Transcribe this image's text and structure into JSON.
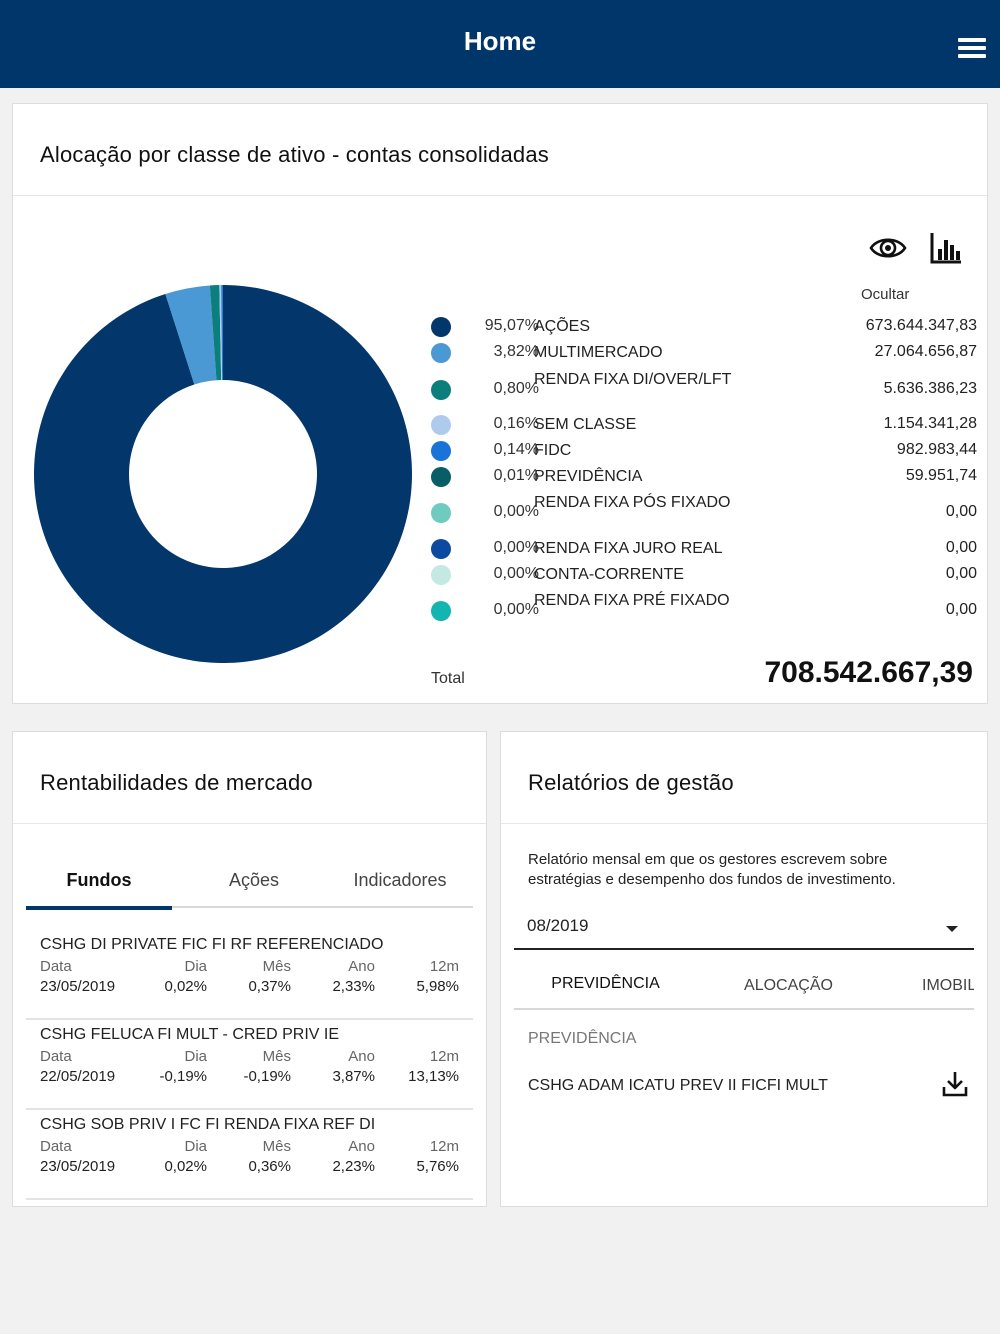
{
  "header": {
    "title": "Home",
    "menu_icon": "hamburger-menu-icon"
  },
  "allocation": {
    "title": "Alocação por classe de ativo - contas consolidadas",
    "eye_icon": "eye-icon",
    "chart_icon": "bar-chart-icon",
    "hide_label": "Ocultar",
    "items": [
      {
        "pct": "95,07%",
        "name": "AÇÕES",
        "value": "673.644.347,83",
        "color": "#03366b"
      },
      {
        "pct": "3,82%",
        "name": "MULTIMERCADO",
        "value": "27.064.656,87",
        "color": "#4a98d4"
      },
      {
        "pct": "0,80%",
        "name": "RENDA FIXA DI/OVER/LFT",
        "value": "5.636.386,23",
        "color": "#0a7f7c"
      },
      {
        "pct": "0,16%",
        "name": "SEM CLASSE",
        "value": "1.154.341,28",
        "color": "#aecbee"
      },
      {
        "pct": "0,14%",
        "name": "FIDC",
        "value": "982.983,44",
        "color": "#1a73d8"
      },
      {
        "pct": "0,01%",
        "name": "PREVIDÊNCIA",
        "value": "59.951,74",
        "color": "#075e66"
      },
      {
        "pct": "0,00%",
        "name": "RENDA FIXA PÓS FIXADO",
        "value": "0,00",
        "color": "#6fcac0"
      },
      {
        "pct": "0,00%",
        "name": "RENDA FIXA JURO REAL",
        "value": "0,00",
        "color": "#0b4aa0"
      },
      {
        "pct": "0,00%",
        "name": "CONTA-CORRENTE",
        "value": "0,00",
        "color": "#c4e8e4"
      },
      {
        "pct": "0,00%",
        "name": "RENDA FIXA PRÉ FIXADO",
        "value": "0,00",
        "color": "#12b5b0"
      }
    ],
    "total_label": "Total",
    "total_value": "708.542.667,39"
  },
  "chart_data": {
    "type": "pie",
    "donut": true,
    "categories": [
      "AÇÕES",
      "MULTIMERCADO",
      "RENDA FIXA DI/OVER/LFT",
      "SEM CLASSE",
      "FIDC",
      "PREVIDÊNCIA",
      "RENDA FIXA PÓS FIXADO",
      "RENDA FIXA JURO REAL",
      "CONTA-CORRENTE",
      "RENDA FIXA PRÉ FIXADO"
    ],
    "values": [
      95.07,
      3.82,
      0.8,
      0.16,
      0.14,
      0.01,
      0.0,
      0.0,
      0.0,
      0.0
    ],
    "colors": [
      "#03366b",
      "#4a98d4",
      "#0a7f7c",
      "#aecbee",
      "#1a73d8",
      "#075e66",
      "#6fcac0",
      "#0b4aa0",
      "#c4e8e4",
      "#12b5b0"
    ]
  },
  "market": {
    "title": "Rentabilidades de mercado",
    "tabs": [
      "Fundos",
      "Ações",
      "Indicadores"
    ],
    "col_labels": {
      "data": "Data",
      "dia": "Dia",
      "mes": "Mês",
      "ano": "Ano",
      "m12": "12m"
    },
    "funds": [
      {
        "name": "CSHG DI PRIVATE FIC FI RF REFERENCIADO",
        "data": "23/05/2019",
        "dia": "0,02%",
        "mes": "0,37%",
        "ano": "2,33%",
        "m12": "5,98%"
      },
      {
        "name": "CSHG FELUCA FI MULT - CRED PRIV IE",
        "data": "22/05/2019",
        "dia": "-0,19%",
        "mes": "-0,19%",
        "ano": "3,87%",
        "m12": "13,13%"
      },
      {
        "name": "CSHG SOB PRIV I FC FI RENDA FIXA REF DI",
        "data": "23/05/2019",
        "dia": "0,02%",
        "mes": "0,36%",
        "ano": "2,23%",
        "m12": "5,76%"
      }
    ]
  },
  "reports": {
    "title": "Relatórios de gestão",
    "description": "Relatório mensal em que os gestores escrevem sobre estratégias e desempenho dos fundos de investimento.",
    "selected_period": "08/2019",
    "tabs": [
      "PREVIDÊNCIA",
      "ALOCAÇÃO",
      "IMOBIL"
    ],
    "section_title": "PREVIDÊNCIA",
    "item": "CSHG ADAM ICATU PREV II FICFI MULT",
    "download_icon": "download-icon"
  }
}
